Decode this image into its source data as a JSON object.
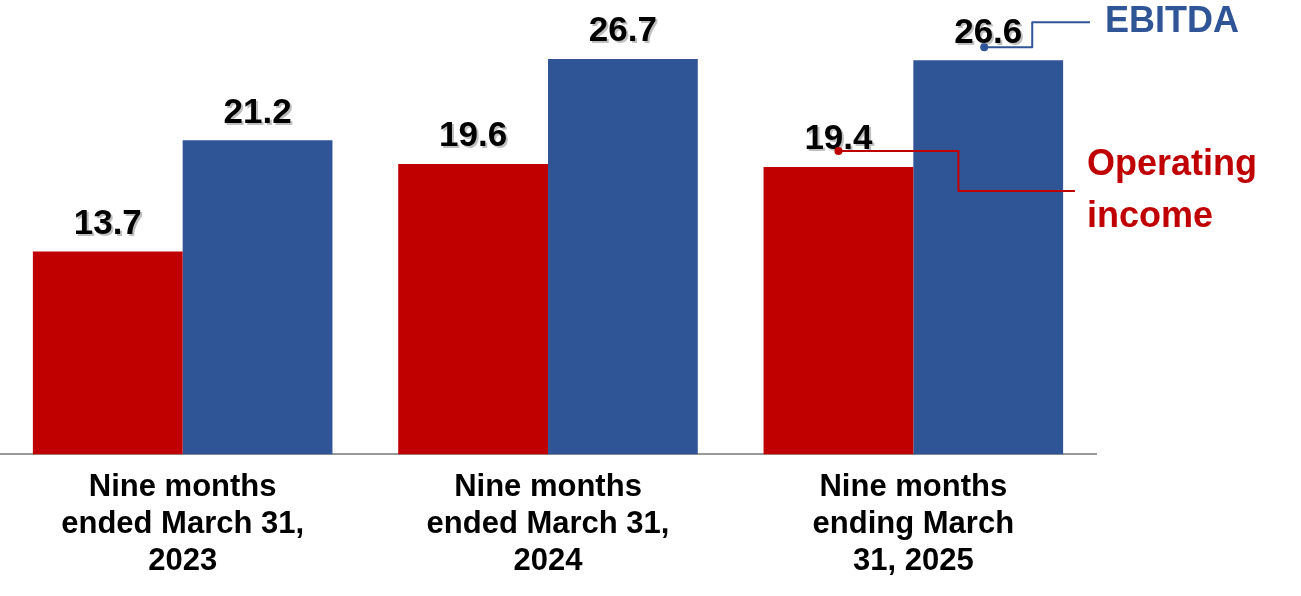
{
  "chart_data": {
    "type": "bar",
    "categories": [
      "Nine months ended March 31, 2023",
      "Nine months ended March 31, 2024",
      "Nine months ending March 31, 2025"
    ],
    "series": [
      {
        "name": "Operating income",
        "color": "#c00000",
        "values": [
          13.7,
          19.6,
          19.4
        ]
      },
      {
        "name": "EBITDA",
        "color": "#2f5597",
        "values": [
          21.2,
          26.7,
          26.6
        ]
      }
    ],
    "data_labels": true,
    "grid": false,
    "legend": "right"
  }
}
